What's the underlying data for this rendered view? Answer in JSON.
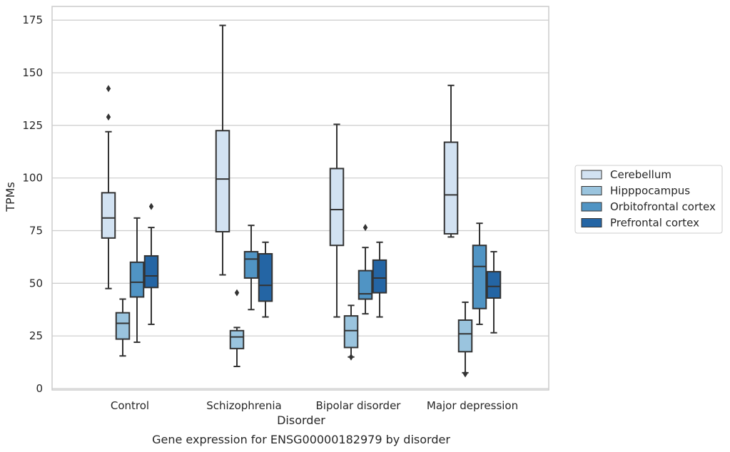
{
  "chart_data": {
    "type": "boxplot",
    "title": "Gene expression for ENSG00000182979 by disorder",
    "xlabel": "Disorder",
    "ylabel": "TPMs",
    "ylim": [
      0,
      181
    ],
    "yticks": [
      0,
      25,
      50,
      75,
      100,
      125,
      150,
      175
    ],
    "categories": [
      "Control",
      "Schizophrenia",
      "Bipolar disorder",
      "Major depression"
    ],
    "grid": "horizontal",
    "legend_position": "right",
    "series": [
      {
        "name": "Cerebellum",
        "color": "#d2e2f2",
        "boxes": [
          {
            "whislo": 47.5,
            "q1": 71.5,
            "med": 81,
            "q3": 93,
            "whishi": 122,
            "fliers": [
              129,
              142.5
            ]
          },
          {
            "whislo": 54,
            "q1": 74.5,
            "med": 99.5,
            "q3": 122.5,
            "whishi": 172.5,
            "fliers": []
          },
          {
            "whislo": 34,
            "q1": 68,
            "med": 85,
            "q3": 104.5,
            "whishi": 125.5,
            "fliers": []
          },
          {
            "whislo": 72,
            "q1": 73.5,
            "med": 92,
            "q3": 117,
            "whishi": 144,
            "fliers": []
          }
        ]
      },
      {
        "name": "Hipppocampus",
        "color": "#9ac4de",
        "boxes": [
          {
            "whislo": 15.5,
            "q1": 23.5,
            "med": 31,
            "q3": 36,
            "whishi": 42.5,
            "fliers": []
          },
          {
            "whislo": 10.5,
            "q1": 19,
            "med": 24.5,
            "q3": 27.5,
            "whishi": 29,
            "fliers": [
              45.5
            ]
          },
          {
            "whislo": 15,
            "q1": 19.5,
            "med": 27.5,
            "q3": 34.5,
            "whishi": 39.5,
            "fliers": [
              15
            ]
          },
          {
            "whislo": 7.5,
            "q1": 17.5,
            "med": 26,
            "q3": 32.5,
            "whishi": 41,
            "fliers": [
              7
            ]
          }
        ]
      },
      {
        "name": "Orbitofrontal cortex",
        "color": "#5094c4",
        "boxes": [
          {
            "whislo": 22,
            "q1": 43.5,
            "med": 50.5,
            "q3": 60,
            "whishi": 81,
            "fliers": []
          },
          {
            "whislo": 37.5,
            "q1": 52.5,
            "med": 61.5,
            "q3": 65,
            "whishi": 77.5,
            "fliers": []
          },
          {
            "whislo": 35.5,
            "q1": 42.5,
            "med": 45,
            "q3": 56,
            "whishi": 67,
            "fliers": [
              76.5
            ]
          },
          {
            "whislo": 30.5,
            "q1": 38,
            "med": 58,
            "q3": 68,
            "whishi": 78.5,
            "fliers": []
          }
        ]
      },
      {
        "name": "Prefrontal cortex",
        "color": "#2465a4",
        "boxes": [
          {
            "whislo": 30.5,
            "q1": 48,
            "med": 53.5,
            "q3": 63,
            "whishi": 76.5,
            "fliers": [
              86.5
            ]
          },
          {
            "whislo": 34,
            "q1": 41.5,
            "med": 49,
            "q3": 64,
            "whishi": 69.5,
            "fliers": []
          },
          {
            "whislo": 34,
            "q1": 45.5,
            "med": 52.5,
            "q3": 61,
            "whishi": 69.5,
            "fliers": []
          },
          {
            "whislo": 26.5,
            "q1": 43,
            "med": 48.5,
            "q3": 55.5,
            "whishi": 65,
            "fliers": []
          }
        ]
      }
    ]
  }
}
